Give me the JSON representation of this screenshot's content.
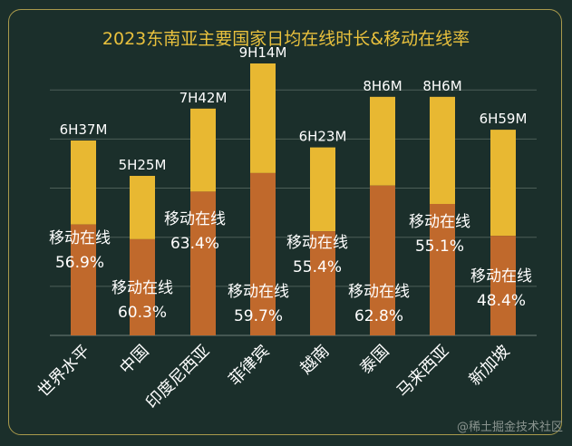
{
  "chart_data": {
    "type": "bar",
    "stacked": true,
    "title": "2023东南亚主要国家日均在线时长&移动在线率",
    "categories": [
      "世界水平",
      "中国",
      "印度尼西亚",
      "菲律宾",
      "越南",
      "泰国",
      "马来西亚",
      "新加坡"
    ],
    "total_labels": [
      "6H37M",
      "5H25M",
      "7H42M",
      "9H14M",
      "6H23M",
      "8H6M",
      "8H6M",
      "6H59M"
    ],
    "total_minutes": [
      397,
      325,
      462,
      554,
      383,
      486,
      486,
      419
    ],
    "mobile_label": "移动在线",
    "mobile_share_pct": [
      56.9,
      60.3,
      63.4,
      59.7,
      55.4,
      62.8,
      55.1,
      48.4
    ],
    "mobile_share_labels": [
      "56.9%",
      "60.3%",
      "63.4%",
      "59.7%",
      "55.4%",
      "62.8%",
      "55.1%",
      "48.4%"
    ],
    "ylim_minutes": [
      0,
      600
    ],
    "grid": true,
    "colors": {
      "total": "#e8b832",
      "mobile": "#c0692c",
      "background": "#1b2f2b",
      "title": "#e9c13d"
    }
  },
  "watermark": "@稀土掘金技术社区"
}
